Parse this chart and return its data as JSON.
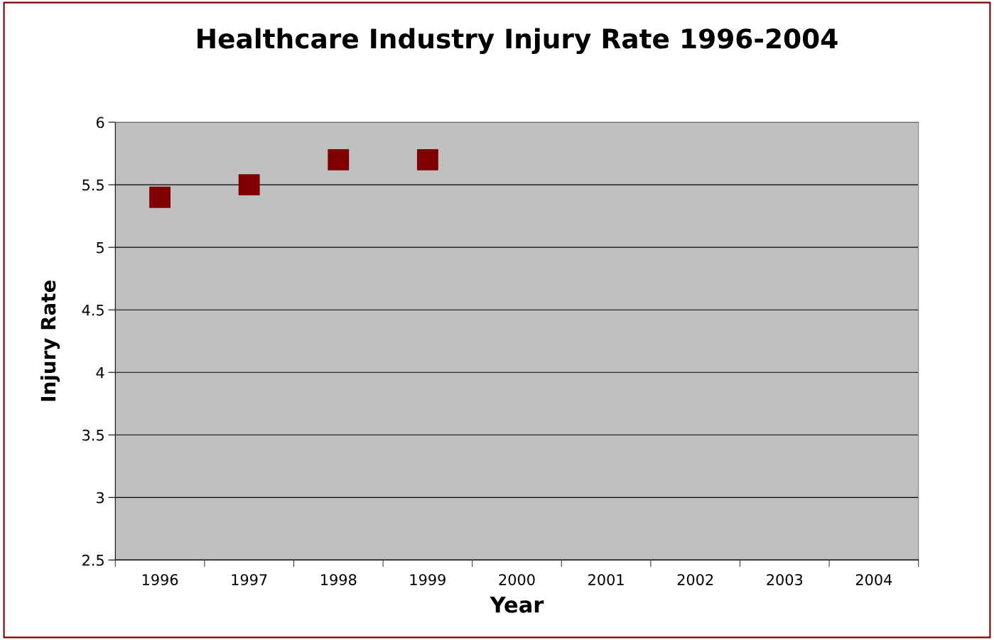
{
  "chart_data": {
    "type": "scatter",
    "title": "Healthcare Industry Injury Rate 1996-2004",
    "xlabel": "Year",
    "ylabel": "Injury Rate",
    "categories": [
      "1996",
      "1997",
      "1998",
      "1999",
      "2000",
      "2001",
      "2002",
      "2003",
      "2004"
    ],
    "series": [
      {
        "color": "#800000",
        "values": [
          5.4,
          5.5,
          5.7,
          5.7,
          null,
          null,
          null,
          null,
          null
        ]
      }
    ],
    "ylim": [
      2.5,
      6
    ],
    "yticks": [
      2.5,
      3,
      3.5,
      4,
      4.5,
      5,
      5.5,
      6
    ],
    "grid": "y",
    "marker": "square"
  }
}
